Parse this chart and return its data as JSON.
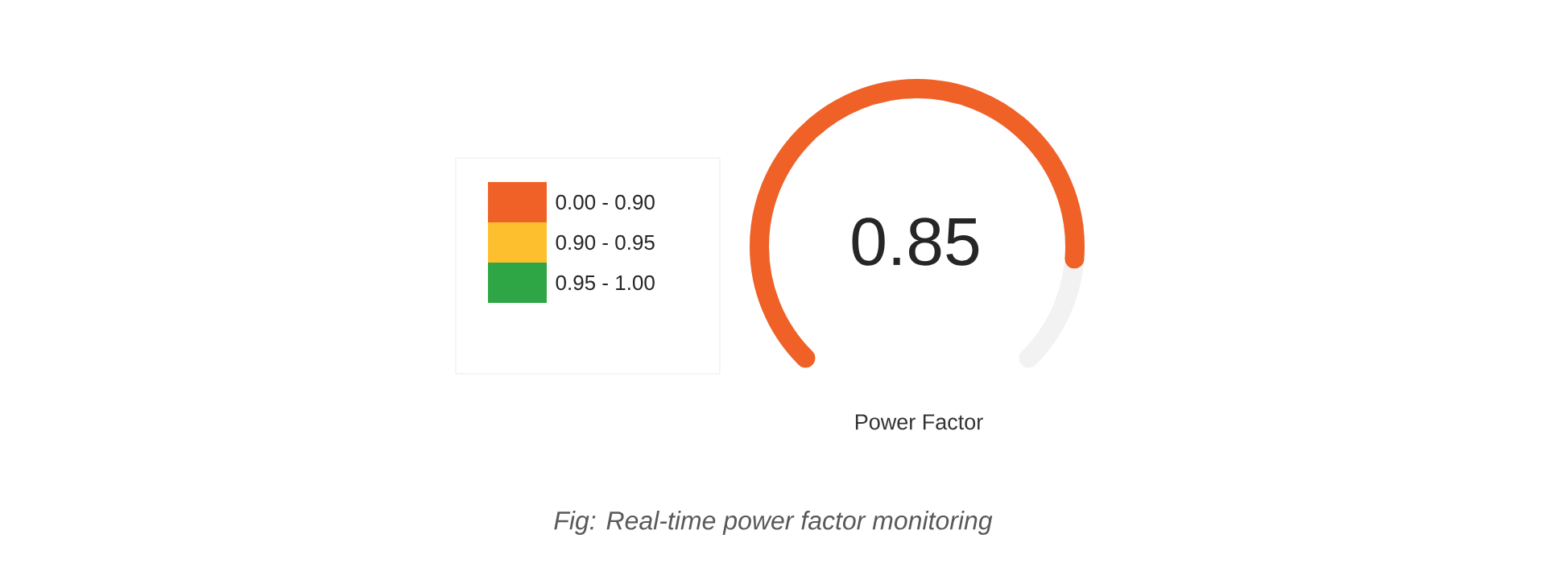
{
  "chart_data": {
    "type": "other",
    "xlabel": "Power Factor",
    "legend": "left",
    "series": [
      {
        "name": "0.00 - 0.90",
        "color": "#ef6127",
        "values": [
          0.85
        ],
        "value_labels": [
          "0.85"
        ]
      },
      {
        "name": "0.90 - 0.95",
        "color": "#fdbf2d",
        "values": [
          null
        ]
      },
      {
        "name": "0.95 - 1.00",
        "color": "#2ea645",
        "values": [
          null
        ]
      }
    ],
    "annotations": [
      "Fig: Real-time power factor monitoring"
    ]
  }
}
